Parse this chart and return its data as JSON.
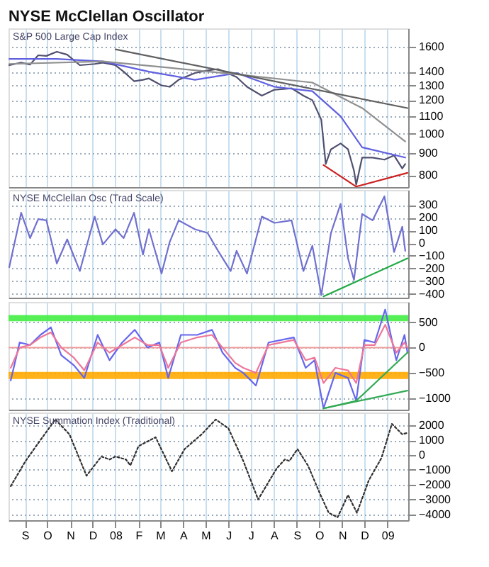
{
  "chart_data": [
    {
      "type": "line",
      "title": "NYSE McClellan Oscillator",
      "subtitle": "S&P 500 Large Cap Index",
      "log": true,
      "grid": true,
      "tick_labels": "y",
      "xlim": [
        "2007-08-10",
        "2009-01-29"
      ],
      "ylim": [
        750,
        1770
      ],
      "yticks": [
        800,
        900,
        1000,
        1100,
        1200,
        1300,
        1400,
        1600
      ],
      "x": [
        "2007-08-11",
        "2007-08-27",
        "2007-09-08",
        "2007-09-19",
        "2007-09-30",
        "2007-10-14",
        "2007-10-28",
        "2007-11-14",
        "2007-12-04",
        "2007-12-15",
        "2008-01-01",
        "2008-01-12",
        "2008-01-26",
        "2008-02-07",
        "2008-02-15",
        "2008-03-03",
        "2008-03-14",
        "2008-03-26",
        "2008-04-17",
        "2008-05-04",
        "2008-05-18",
        "2008-06-04",
        "2008-06-12",
        "2008-06-26",
        "2008-07-16",
        "2008-08-02",
        "2008-08-25",
        "2008-09-10",
        "2008-09-22",
        "2008-10-04",
        "2008-10-10",
        "2008-10-17",
        "2008-10-30",
        "2008-11-09",
        "2008-11-17",
        "2008-11-20",
        "2008-11-28",
        "2008-12-12",
        "2008-12-28",
        "2009-01-10",
        "2009-01-21",
        "2009-01-25"
      ],
      "xticks": [
        {
          "value": "2007-09-01",
          "label": null
        },
        {
          "value": "2007-10-01",
          "label": null
        },
        {
          "value": "2007-11-01",
          "label": null
        },
        {
          "value": "2007-12-01",
          "label": null
        },
        {
          "value": "2008-01-01",
          "label": null
        },
        {
          "value": "2008-02-01",
          "label": null
        },
        {
          "value": "2008-03-01",
          "label": null
        },
        {
          "value": "2008-04-01",
          "label": null
        },
        {
          "value": "2008-05-01",
          "label": null
        },
        {
          "value": "2008-06-01",
          "label": null
        },
        {
          "value": "2008-07-01",
          "label": null
        },
        {
          "value": "2008-08-01",
          "label": null
        },
        {
          "value": "2008-09-01",
          "label": null
        },
        {
          "value": "2008-10-01",
          "label": null
        },
        {
          "value": "2008-11-01",
          "label": null
        },
        {
          "value": "2008-12-01",
          "label": null
        },
        {
          "value": "2009-01-01",
          "label": null
        }
      ],
      "series": [
        {
          "color": "#505070",
          "values": [
            1450,
            1470,
            1455,
            1530,
            1525,
            1560,
            1535,
            1450,
            1460,
            1470,
            1450,
            1400,
            1330,
            1340,
            1350,
            1300,
            1290,
            1340,
            1390,
            1410,
            1420,
            1380,
            1360,
            1290,
            1230,
            1270,
            1280,
            1230,
            1200,
            1080,
            850,
            920,
            950,
            920,
            820,
            760,
            880,
            880,
            870,
            890,
            830,
            850
          ]
        },
        {
          "color": "#6060e0",
          "x": [
            "2007-08-11",
            "2007-10-14",
            "2007-12-15",
            "2008-02-15",
            "2008-04-17",
            "2008-06-12",
            "2008-08-02",
            "2008-09-22",
            "2008-10-30",
            "2008-11-28",
            "2009-01-25"
          ],
          "values": [
            1500,
            1500,
            1480,
            1400,
            1340,
            1390,
            1290,
            1260,
            1100,
            930,
            880
          ]
        },
        {
          "color": "#909090",
          "x": [
            "2007-08-11",
            "2007-12-15",
            "2008-03-14",
            "2008-06-12",
            "2008-09-22",
            "2008-11-28",
            "2009-01-25"
          ],
          "values": [
            1460,
            1480,
            1430,
            1380,
            1320,
            1150,
            960
          ]
        },
        {
          "color": "#606060",
          "x": [
            "2008-01-01",
            "2009-01-28"
          ],
          "values": [
            1580,
            1150
          ]
        },
        {
          "color": "#cc2222",
          "x": [
            "2008-10-07",
            "2008-11-20",
            "2009-01-28"
          ],
          "values": [
            845,
            752,
            810
          ]
        }
      ]
    },
    {
      "type": "line",
      "subtitle": "NYSE McClellan Osc (Trad Scale)",
      "grid": true,
      "tick_labels": "y",
      "xlim": [
        "2007-08-10",
        "2009-01-29"
      ],
      "ylim": [
        -430,
        420
      ],
      "yticks": [
        -400,
        -300,
        -200,
        -100,
        0,
        100,
        200,
        300
      ],
      "x": [
        "2007-08-11",
        "2007-08-27",
        "2007-09-08",
        "2007-09-19",
        "2007-09-30",
        "2007-10-14",
        "2007-10-28",
        "2007-11-14",
        "2007-12-04",
        "2007-12-15",
        "2008-01-01",
        "2008-01-12",
        "2008-01-26",
        "2008-02-07",
        "2008-02-15",
        "2008-03-03",
        "2008-03-14",
        "2008-03-26",
        "2008-04-17",
        "2008-05-04",
        "2008-05-18",
        "2008-06-04",
        "2008-06-12",
        "2008-06-26",
        "2008-07-16",
        "2008-08-02",
        "2008-08-25",
        "2008-09-10",
        "2008-09-22",
        "2008-10-04",
        "2008-10-17",
        "2008-10-30",
        "2008-11-09",
        "2008-11-17",
        "2008-11-28",
        "2008-12-12",
        "2008-12-28",
        "2009-01-10",
        "2009-01-21",
        "2009-01-25"
      ],
      "xticks": [
        {
          "value": "2007-09-01",
          "label": null
        },
        {
          "value": "2007-10-01",
          "label": null
        },
        {
          "value": "2007-11-01",
          "label": null
        },
        {
          "value": "2007-12-01",
          "label": null
        },
        {
          "value": "2008-01-01",
          "label": null
        },
        {
          "value": "2008-02-01",
          "label": null
        },
        {
          "value": "2008-03-01",
          "label": null
        },
        {
          "value": "2008-04-01",
          "label": null
        },
        {
          "value": "2008-05-01",
          "label": null
        },
        {
          "value": "2008-06-01",
          "label": null
        },
        {
          "value": "2008-07-01",
          "label": null
        },
        {
          "value": "2008-08-01",
          "label": null
        },
        {
          "value": "2008-09-01",
          "label": null
        },
        {
          "value": "2008-10-01",
          "label": null
        },
        {
          "value": "2008-11-01",
          "label": null
        },
        {
          "value": "2008-12-01",
          "label": null
        },
        {
          "value": "2009-01-01",
          "label": null
        }
      ],
      "series": [
        {
          "color": "#7070d0",
          "values": [
            -190,
            240,
            40,
            190,
            180,
            -160,
            30,
            -220,
            210,
            -10,
            110,
            40,
            240,
            -90,
            110,
            -240,
            10,
            180,
            110,
            80,
            -60,
            -220,
            -60,
            -240,
            210,
            160,
            180,
            -220,
            -20,
            -410,
            80,
            310,
            -120,
            -290,
            230,
            180,
            370,
            -70,
            130,
            -60
          ]
        },
        {
          "color": "#22aa44",
          "x": [
            "2008-10-07",
            "2009-01-28"
          ],
          "values": [
            -420,
            -120
          ]
        }
      ]
    },
    {
      "type": "line",
      "grid": true,
      "tick_labels": "y",
      "xlim": [
        "2007-08-10",
        "2009-01-29"
      ],
      "ylim": [
        -1225,
        900
      ],
      "yticks": [
        -1000,
        -500,
        0,
        500
      ],
      "x": [
        "2007-08-13",
        "2007-08-25",
        "2007-09-08",
        "2007-09-22",
        "2007-10-06",
        "2007-10-20",
        "2007-11-06",
        "2007-11-20",
        "2007-12-08",
        "2007-12-24",
        "2008-01-10",
        "2008-01-27",
        "2008-02-13",
        "2008-02-29",
        "2008-03-12",
        "2008-03-29",
        "2008-04-20",
        "2008-05-10",
        "2008-05-24",
        "2008-06-10",
        "2008-06-21",
        "2008-07-08",
        "2008-07-25",
        "2008-08-28",
        "2008-09-13",
        "2008-09-25",
        "2008-10-07",
        "2008-10-23",
        "2008-11-09",
        "2008-11-20",
        "2008-12-01",
        "2008-12-15",
        "2008-12-29",
        "2009-01-13",
        "2009-01-24",
        "2009-01-28"
      ],
      "xticks": [
        {
          "value": "2007-09-01",
          "label": null
        },
        {
          "value": "2007-10-01",
          "label": null
        },
        {
          "value": "2007-11-01",
          "label": null
        },
        {
          "value": "2007-12-01",
          "label": null
        },
        {
          "value": "2008-01-01",
          "label": null
        },
        {
          "value": "2008-02-01",
          "label": null
        },
        {
          "value": "2008-03-01",
          "label": null
        },
        {
          "value": "2008-04-01",
          "label": null
        },
        {
          "value": "2008-05-01",
          "label": null
        },
        {
          "value": "2008-06-01",
          "label": null
        },
        {
          "value": "2008-07-01",
          "label": null
        },
        {
          "value": "2008-08-01",
          "label": null
        },
        {
          "value": "2008-09-01",
          "label": null
        },
        {
          "value": "2008-10-01",
          "label": null
        },
        {
          "value": "2008-11-01",
          "label": null
        },
        {
          "value": "2008-12-01",
          "label": null
        },
        {
          "value": "2009-01-01",
          "label": null
        }
      ],
      "bands": [
        {
          "axis": "y",
          "from": 520,
          "to": 640,
          "color": "#44ee44"
        },
        {
          "axis": "y",
          "from": -620,
          "to": -480,
          "color": "#ffaa00"
        }
      ],
      "ref_lines": [
        {
          "axis": "y",
          "value": 0,
          "color": "#ee9999"
        }
      ],
      "series": [
        {
          "color": "#6666ee",
          "values": [
            -650,
            100,
            50,
            250,
            400,
            -150,
            -350,
            -600,
            250,
            -250,
            100,
            350,
            0,
            100,
            -600,
            250,
            250,
            350,
            -100,
            -400,
            -500,
            -750,
            100,
            200,
            -400,
            -250,
            -1200,
            -500,
            -600,
            -1050,
            150,
            100,
            750,
            -250,
            250,
            -100
          ]
        },
        {
          "color": "#ee7799",
          "values": [
            -400,
            0,
            50,
            200,
            300,
            0,
            -200,
            -450,
            100,
            -100,
            50,
            200,
            50,
            50,
            -400,
            100,
            200,
            250,
            0,
            -300,
            -400,
            -500,
            50,
            150,
            -250,
            -200,
            -700,
            -400,
            -450,
            -700,
            50,
            50,
            450,
            -100,
            100,
            0
          ]
        },
        {
          "color": "#33aa55",
          "x": [
            "2008-10-07",
            "2008-11-20",
            "2009-01-28"
          ],
          "values": [
            -1200,
            -1050,
            -100
          ]
        },
        {
          "color": "#33aa55",
          "x": [
            "2008-10-07",
            "2009-01-28"
          ],
          "values": [
            -1200,
            -850
          ]
        }
      ]
    },
    {
      "type": "line",
      "subtitle": "NYSE Summation Index (Traditional)",
      "grid": true,
      "xlim": [
        "2007-08-10",
        "2009-01-29"
      ],
      "ylim": [
        -4400,
        2870
      ],
      "yticks": [
        -4000,
        -3000,
        -2000,
        -1000,
        0,
        1000,
        2000
      ],
      "x": [
        "2007-08-13",
        "2007-09-02",
        "2007-09-19",
        "2007-10-12",
        "2007-10-31",
        "2007-11-23",
        "2007-12-13",
        "2007-12-24",
        "2008-01-01",
        "2008-01-15",
        "2008-01-21",
        "2008-02-01",
        "2008-02-24",
        "2008-03-17",
        "2008-04-03",
        "2008-04-26",
        "2008-05-15",
        "2008-06-01",
        "2008-06-21",
        "2008-07-11",
        "2008-08-05",
        "2008-08-16",
        "2008-08-22",
        "2008-09-02",
        "2008-09-16",
        "2008-10-03",
        "2008-10-14",
        "2008-10-26",
        "2008-11-09",
        "2008-11-21",
        "2008-12-07",
        "2008-12-24",
        "2009-01-07",
        "2009-01-21",
        "2009-01-28"
      ],
      "xticks": [
        {
          "value": "2007-09-01",
          "label": "S"
        },
        {
          "value": "2007-10-01",
          "label": "O"
        },
        {
          "value": "2007-11-01",
          "label": "N"
        },
        {
          "value": "2007-12-01",
          "label": "D"
        },
        {
          "value": "2008-01-01",
          "label": "08"
        },
        {
          "value": "2008-02-01",
          "label": "F"
        },
        {
          "value": "2008-03-01",
          "label": "M"
        },
        {
          "value": "2008-04-01",
          "label": "A"
        },
        {
          "value": "2008-05-01",
          "label": "M"
        },
        {
          "value": "2008-06-01",
          "label": "J"
        },
        {
          "value": "2008-07-01",
          "label": "J"
        },
        {
          "value": "2008-08-01",
          "label": "A"
        },
        {
          "value": "2008-09-01",
          "label": "S"
        },
        {
          "value": "2008-10-01",
          "label": "O"
        },
        {
          "value": "2008-11-01",
          "label": "N"
        },
        {
          "value": "2008-12-01",
          "label": "D"
        },
        {
          "value": "2009-01-01",
          "label": "09"
        }
      ],
      "series": [
        {
          "color": "#303030",
          "line_style": "dotted",
          "values": [
            -2100,
            -400,
            800,
            2400,
            1400,
            -1400,
            -100,
            -300,
            -100,
            -300,
            -700,
            600,
            1200,
            -1100,
            400,
            1400,
            2400,
            1800,
            -400,
            -3000,
            -900,
            -300,
            -400,
            400,
            -700,
            -2700,
            -3900,
            -4200,
            -2700,
            -3900,
            -1700,
            -200,
            2100,
            1400,
            1500
          ]
        }
      ]
    }
  ]
}
